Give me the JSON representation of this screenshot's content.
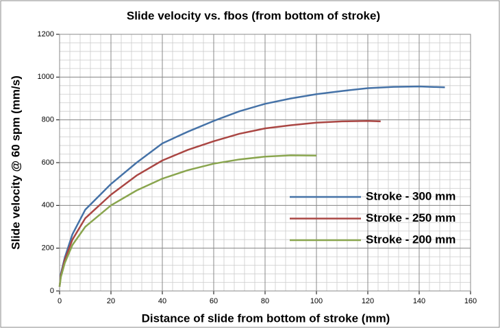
{
  "chart_data": {
    "type": "line",
    "title": "Slide velocity vs. fbos (from bottom of stroke)",
    "x_label": "Distance of slide from bottom of stroke (mm)",
    "y_label": "Slide velocity @ 60 spm (mm/s)",
    "series": [
      {
        "name": "Stroke - 300 mm",
        "color": "#4572a7",
        "x": [
          0,
          0.5,
          2,
          5,
          10,
          20,
          30,
          40,
          50,
          60,
          70,
          80,
          90,
          100,
          110,
          120,
          130,
          140,
          150
        ],
        "values": [
          20,
          80,
          155,
          265,
          380,
          500,
          600,
          690,
          745,
          795,
          840,
          875,
          900,
          920,
          935,
          948,
          954,
          956,
          952
        ]
      },
      {
        "name": "Stroke - 250 mm",
        "color": "#aa4643",
        "x": [
          0,
          0.5,
          2,
          5,
          10,
          20,
          30,
          40,
          50,
          60,
          70,
          80,
          90,
          100,
          110,
          120,
          125
        ],
        "values": [
          20,
          72,
          145,
          240,
          340,
          450,
          540,
          610,
          660,
          700,
          735,
          760,
          775,
          787,
          793,
          795,
          793
        ]
      },
      {
        "name": "Stroke - 200 mm",
        "color": "#89a54e",
        "x": [
          0,
          0.5,
          2,
          5,
          10,
          20,
          30,
          40,
          50,
          60,
          70,
          80,
          90,
          100
        ],
        "values": [
          20,
          65,
          130,
          215,
          300,
          400,
          470,
          525,
          565,
          595,
          615,
          628,
          634,
          633
        ]
      }
    ],
    "xlim": [
      0,
      160
    ],
    "xticks": [
      0,
      20,
      40,
      60,
      80,
      100,
      120,
      140,
      160
    ],
    "ylim": [
      0,
      1200
    ],
    "yticks": [
      0,
      200,
      400,
      600,
      800,
      1000,
      1200
    ],
    "grid": true,
    "minor_grid": {
      "x": 4,
      "y": 40
    },
    "legend": "right"
  }
}
